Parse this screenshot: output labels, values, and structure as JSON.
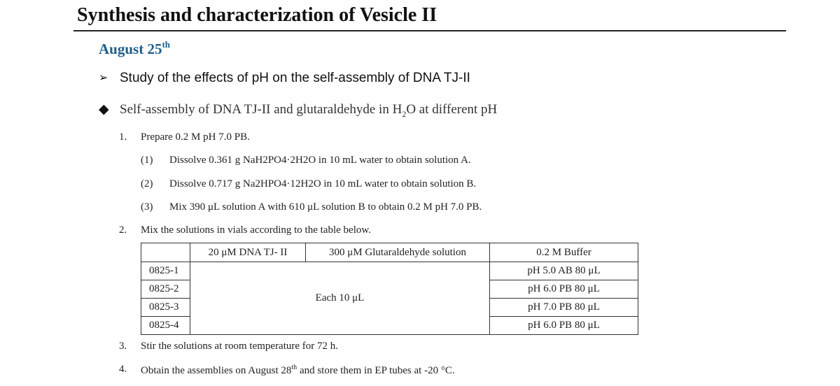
{
  "title": "Synthesis and characterization of Vesicle II",
  "date": {
    "main": "August 25",
    "sup": "th"
  },
  "section": {
    "arrow_heading": "Study of the effects of pH on the self-assembly of DNA TJ-II",
    "diamond_heading_pre": "Self-assembly of DNA TJ-II and glutaraldehyde in H",
    "diamond_heading_sub": "2",
    "diamond_heading_post": "O at different pH"
  },
  "steps": [
    {
      "num": "1.",
      "text": "Prepare 0.2 M pH 7.0 PB."
    },
    {
      "num": "2.",
      "text": "Mix the solutions in vials according to the table below."
    },
    {
      "num": "3.",
      "text": "Stir the solutions at room temperature for 72 h."
    },
    {
      "num": "4.",
      "text_pre": "Obtain the assemblies on August 28",
      "text_sup": "th",
      "text_post": " and store them in EP tubes at -20 °C."
    }
  ],
  "substeps": [
    {
      "num": "(1)",
      "text": "Dissolve 0.361 g NaH2PO4·2H2O in 10 mL water to obtain solution A."
    },
    {
      "num": "(2)",
      "text": "Dissolve 0.717 g Na2HPO4·12H2O in 10 mL water to obtain solution B."
    },
    {
      "num": "(3)",
      "text": "Mix 390 μL solution A with 610 μL solution B to obtain 0.2 M pH 7.0 PB."
    }
  ],
  "table": {
    "headers": [
      "",
      "20 μM DNA TJ- II",
      "300 μM Glutaraldehyde solution",
      "0.2 M Buffer"
    ],
    "merged_cell": "Each 10 μL",
    "rows": [
      {
        "id": "0825-1",
        "buffer": "pH 5.0 AB 80 μL"
      },
      {
        "id": "0825-2",
        "buffer": "pH 6.0 PB 80 μL"
      },
      {
        "id": "0825-3",
        "buffer": "pH 7.0 PB 80 μL"
      },
      {
        "id": "0825-4",
        "buffer": "pH 6.0 PB 80 μL"
      }
    ]
  }
}
